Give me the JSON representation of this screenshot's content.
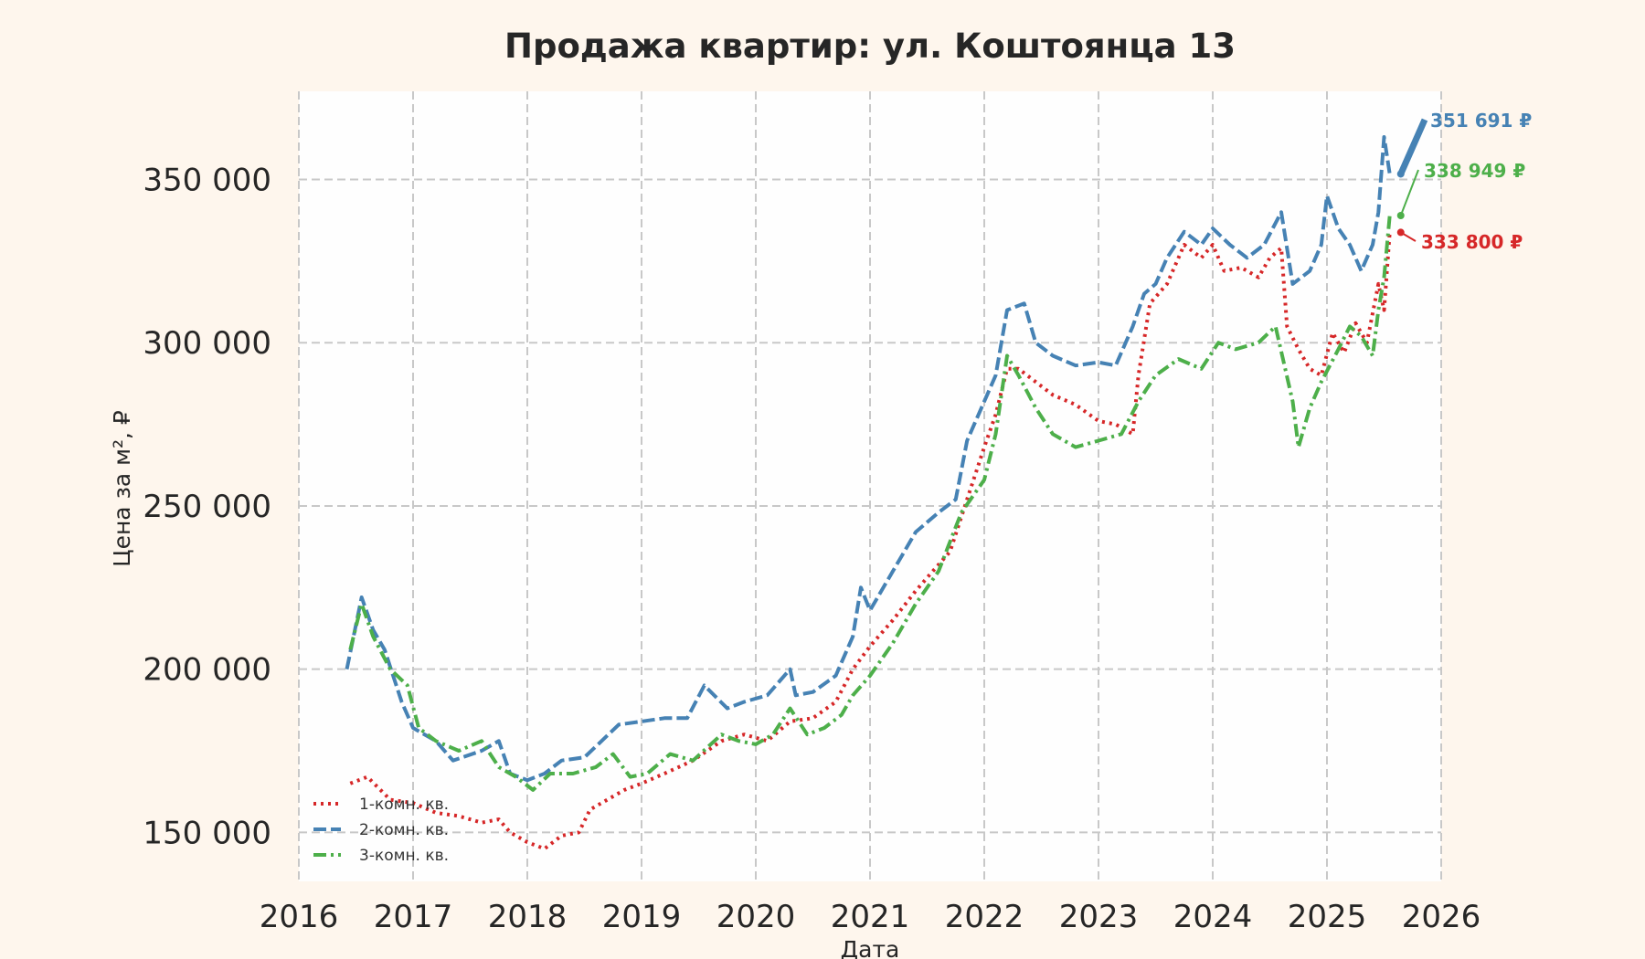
{
  "chart_data": {
    "type": "line",
    "title": "Продажа квартир: ул. Коштоянца 13",
    "xlabel": "Дата",
    "ylabel": "Цена за м², ₽",
    "xlim": [
      2016,
      2026
    ],
    "ylim": [
      135000,
      377000
    ],
    "x_ticks": [
      "2016",
      "2017",
      "2018",
      "2019",
      "2020",
      "2021",
      "2022",
      "2023",
      "2024",
      "2025",
      "2026"
    ],
    "y_ticks": [
      "150 000",
      "200 000",
      "250 000",
      "300 000",
      "350 000"
    ],
    "grid": true,
    "legend_position": "bottom-left",
    "series": [
      {
        "name": "1-комн. кв.",
        "color": "#d62728",
        "dash": "dotted",
        "end_label": "333 800 ₽",
        "points": [
          [
            2016.45,
            165000
          ],
          [
            2016.6,
            167000
          ],
          [
            2016.8,
            160000
          ],
          [
            2017.0,
            159000
          ],
          [
            2017.2,
            156000
          ],
          [
            2017.4,
            155000
          ],
          [
            2017.6,
            153000
          ],
          [
            2017.75,
            154000
          ],
          [
            2017.85,
            150000
          ],
          [
            2018.0,
            147000
          ],
          [
            2018.15,
            145000
          ],
          [
            2018.3,
            149000
          ],
          [
            2018.45,
            150000
          ],
          [
            2018.55,
            157000
          ],
          [
            2018.7,
            160000
          ],
          [
            2018.85,
            163000
          ],
          [
            2019.0,
            165000
          ],
          [
            2019.2,
            168000
          ],
          [
            2019.45,
            172000
          ],
          [
            2019.7,
            178000
          ],
          [
            2019.9,
            180000
          ],
          [
            2020.1,
            178000
          ],
          [
            2020.3,
            184000
          ],
          [
            2020.5,
            185000
          ],
          [
            2020.7,
            190000
          ],
          [
            2020.85,
            200000
          ],
          [
            2021.0,
            207000
          ],
          [
            2021.2,
            215000
          ],
          [
            2021.4,
            224000
          ],
          [
            2021.55,
            230000
          ],
          [
            2021.7,
            236000
          ],
          [
            2021.85,
            252000
          ],
          [
            2022.0,
            268000
          ],
          [
            2022.1,
            278000
          ],
          [
            2022.2,
            292000
          ],
          [
            2022.3,
            292000
          ],
          [
            2022.45,
            288000
          ],
          [
            2022.6,
            284000
          ],
          [
            2022.8,
            281000
          ],
          [
            2023.0,
            276000
          ],
          [
            2023.15,
            275000
          ],
          [
            2023.3,
            272000
          ],
          [
            2023.35,
            290000
          ],
          [
            2023.45,
            312000
          ],
          [
            2023.6,
            318000
          ],
          [
            2023.75,
            330000
          ],
          [
            2023.9,
            326000
          ],
          [
            2024.0,
            330000
          ],
          [
            2024.1,
            322000
          ],
          [
            2024.25,
            323000
          ],
          [
            2024.4,
            320000
          ],
          [
            2024.5,
            326000
          ],
          [
            2024.6,
            329000
          ],
          [
            2024.65,
            305000
          ],
          [
            2024.75,
            298000
          ],
          [
            2024.85,
            292000
          ],
          [
            2024.95,
            290000
          ],
          [
            2025.05,
            303000
          ],
          [
            2025.15,
            297000
          ],
          [
            2025.25,
            306000
          ],
          [
            2025.35,
            300000
          ],
          [
            2025.45,
            318000
          ],
          [
            2025.5,
            310000
          ],
          [
            2025.55,
            333800
          ]
        ]
      },
      {
        "name": "2-комн. кв.",
        "color": "#4682b4",
        "dash": "dashed",
        "end_label": "351 691 ₽",
        "points": [
          [
            2016.42,
            200000
          ],
          [
            2016.55,
            222000
          ],
          [
            2016.65,
            212000
          ],
          [
            2016.75,
            206000
          ],
          [
            2016.9,
            190000
          ],
          [
            2017.0,
            182000
          ],
          [
            2017.2,
            178000
          ],
          [
            2017.35,
            172000
          ],
          [
            2017.6,
            175000
          ],
          [
            2017.75,
            178000
          ],
          [
            2017.85,
            168000
          ],
          [
            2018.0,
            166000
          ],
          [
            2018.15,
            168000
          ],
          [
            2018.3,
            172000
          ],
          [
            2018.5,
            173000
          ],
          [
            2018.65,
            178000
          ],
          [
            2018.8,
            183000
          ],
          [
            2019.0,
            184000
          ],
          [
            2019.2,
            185000
          ],
          [
            2019.4,
            185000
          ],
          [
            2019.55,
            195000
          ],
          [
            2019.75,
            188000
          ],
          [
            2019.9,
            190000
          ],
          [
            2020.1,
            192000
          ],
          [
            2020.3,
            200000
          ],
          [
            2020.35,
            192000
          ],
          [
            2020.5,
            193000
          ],
          [
            2020.7,
            198000
          ],
          [
            2020.85,
            210000
          ],
          [
            2020.92,
            225000
          ],
          [
            2021.0,
            218000
          ],
          [
            2021.2,
            230000
          ],
          [
            2021.4,
            242000
          ],
          [
            2021.6,
            248000
          ],
          [
            2021.75,
            252000
          ],
          [
            2021.85,
            270000
          ],
          [
            2022.0,
            282000
          ],
          [
            2022.1,
            290000
          ],
          [
            2022.2,
            310000
          ],
          [
            2022.35,
            312000
          ],
          [
            2022.45,
            300000
          ],
          [
            2022.6,
            296000
          ],
          [
            2022.8,
            293000
          ],
          [
            2023.0,
            294000
          ],
          [
            2023.15,
            293000
          ],
          [
            2023.3,
            305000
          ],
          [
            2023.4,
            315000
          ],
          [
            2023.5,
            318000
          ],
          [
            2023.6,
            326000
          ],
          [
            2023.75,
            334000
          ],
          [
            2023.9,
            330000
          ],
          [
            2024.0,
            335000
          ],
          [
            2024.15,
            330000
          ],
          [
            2024.3,
            326000
          ],
          [
            2024.45,
            330000
          ],
          [
            2024.6,
            340000
          ],
          [
            2024.7,
            318000
          ],
          [
            2024.85,
            322000
          ],
          [
            2024.95,
            330000
          ],
          [
            2025.0,
            345000
          ],
          [
            2025.1,
            335000
          ],
          [
            2025.2,
            330000
          ],
          [
            2025.3,
            322000
          ],
          [
            2025.4,
            330000
          ],
          [
            2025.45,
            340000
          ],
          [
            2025.5,
            363000
          ],
          [
            2025.55,
            351691
          ]
        ]
      },
      {
        "name": "3-комн. кв.",
        "color": "#4daf4a",
        "dash": "dashdot",
        "end_label": "338 949 ₽",
        "points": [
          [
            2016.45,
            206000
          ],
          [
            2016.55,
            220000
          ],
          [
            2016.65,
            210000
          ],
          [
            2016.8,
            200000
          ],
          [
            2016.95,
            195000
          ],
          [
            2017.05,
            182000
          ],
          [
            2017.2,
            178000
          ],
          [
            2017.4,
            175000
          ],
          [
            2017.6,
            178000
          ],
          [
            2017.75,
            170000
          ],
          [
            2017.9,
            167000
          ],
          [
            2018.05,
            163000
          ],
          [
            2018.2,
            168000
          ],
          [
            2018.4,
            168000
          ],
          [
            2018.6,
            170000
          ],
          [
            2018.75,
            174000
          ],
          [
            2018.9,
            167000
          ],
          [
            2019.05,
            168000
          ],
          [
            2019.25,
            174000
          ],
          [
            2019.45,
            172000
          ],
          [
            2019.7,
            180000
          ],
          [
            2019.85,
            178000
          ],
          [
            2020.0,
            177000
          ],
          [
            2020.15,
            180000
          ],
          [
            2020.3,
            188000
          ],
          [
            2020.45,
            180000
          ],
          [
            2020.6,
            182000
          ],
          [
            2020.75,
            186000
          ],
          [
            2020.85,
            192000
          ],
          [
            2021.0,
            198000
          ],
          [
            2021.2,
            208000
          ],
          [
            2021.4,
            220000
          ],
          [
            2021.6,
            230000
          ],
          [
            2021.8,
            248000
          ],
          [
            2022.0,
            258000
          ],
          [
            2022.1,
            272000
          ],
          [
            2022.2,
            296000
          ],
          [
            2022.3,
            290000
          ],
          [
            2022.45,
            280000
          ],
          [
            2022.6,
            272000
          ],
          [
            2022.8,
            268000
          ],
          [
            2023.0,
            270000
          ],
          [
            2023.2,
            272000
          ],
          [
            2023.35,
            282000
          ],
          [
            2023.5,
            290000
          ],
          [
            2023.7,
            295000
          ],
          [
            2023.9,
            292000
          ],
          [
            2024.05,
            300000
          ],
          [
            2024.2,
            298000
          ],
          [
            2024.4,
            300000
          ],
          [
            2024.55,
            305000
          ],
          [
            2024.7,
            282000
          ],
          [
            2024.75,
            268000
          ],
          [
            2024.85,
            280000
          ],
          [
            2024.95,
            288000
          ],
          [
            2025.1,
            298000
          ],
          [
            2025.2,
            305000
          ],
          [
            2025.3,
            302000
          ],
          [
            2025.4,
            296000
          ],
          [
            2025.45,
            310000
          ],
          [
            2025.5,
            320000
          ],
          [
            2025.55,
            338949
          ]
        ]
      }
    ]
  }
}
